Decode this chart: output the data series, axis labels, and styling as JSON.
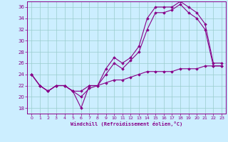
{
  "xlabel": "Windchill (Refroidissement éolien,°C)",
  "background_color": "#cceeff",
  "line_color": "#880088",
  "grid_color": "#99cccc",
  "xlim": [
    -0.5,
    23.5
  ],
  "ylim": [
    17,
    37
  ],
  "yticks": [
    18,
    20,
    22,
    24,
    26,
    28,
    30,
    32,
    34,
    36
  ],
  "xticks": [
    0,
    1,
    2,
    3,
    4,
    5,
    6,
    7,
    8,
    9,
    10,
    11,
    12,
    13,
    14,
    15,
    16,
    17,
    18,
    19,
    20,
    21,
    22,
    23
  ],
  "curve1_x": [
    0,
    1,
    2,
    3,
    4,
    5,
    6,
    7,
    8,
    9,
    10,
    11,
    12,
    13,
    14,
    15,
    16,
    17,
    18,
    19,
    20,
    21,
    22,
    23
  ],
  "curve1_y": [
    24,
    22,
    21,
    22,
    22,
    21,
    18,
    22,
    22,
    25,
    27,
    26,
    27,
    29,
    34,
    36,
    36,
    36,
    37,
    36,
    35,
    33,
    26,
    26
  ],
  "curve2_x": [
    0,
    1,
    2,
    3,
    4,
    5,
    6,
    7,
    8,
    9,
    10,
    11,
    12,
    13,
    14,
    15,
    16,
    17,
    18,
    19,
    20,
    21,
    22,
    23
  ],
  "curve2_y": [
    24,
    22,
    21,
    22,
    22,
    21,
    20,
    21.5,
    22,
    24,
    26,
    25,
    26.5,
    28,
    32,
    35,
    35,
    35.5,
    36.5,
    35,
    34,
    32,
    25.5,
    25.5
  ],
  "curve3_x": [
    0,
    1,
    2,
    3,
    4,
    5,
    6,
    7,
    8,
    9,
    10,
    11,
    12,
    13,
    14,
    15,
    16,
    17,
    18,
    19,
    20,
    21,
    22,
    23
  ],
  "curve3_y": [
    24,
    22,
    21,
    22,
    22,
    21,
    21,
    22,
    22,
    22.5,
    23,
    23,
    23.5,
    24,
    24.5,
    24.5,
    24.5,
    24.5,
    25,
    25,
    25,
    25.5,
    25.5,
    25.5
  ]
}
